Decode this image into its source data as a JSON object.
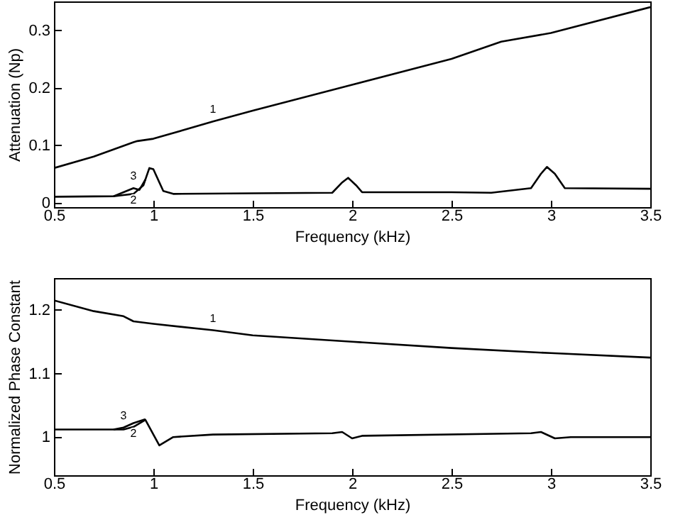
{
  "chart_data": [
    {
      "type": "line",
      "xlabel": "Frequency (kHz)",
      "ylabel": "Attenuation (Np)",
      "xlim": [
        0.5,
        3.5
      ],
      "xticks": [
        0.5,
        1,
        1.5,
        2,
        2.5,
        3,
        3.5
      ],
      "ylim": [
        -0.008,
        0.35
      ],
      "yticks": [
        0,
        0.1,
        0.2,
        0.3
      ],
      "series": [
        {
          "color": "#000000",
          "x": [
            0.5,
            0.7,
            0.9,
            0.92,
            1.0,
            1.3,
            1.5,
            2.0,
            2.5,
            2.75,
            3.0,
            3.5
          ],
          "values": [
            0.06,
            0.08,
            0.105,
            0.107,
            0.111,
            0.141,
            0.16,
            0.205,
            0.25,
            0.28,
            0.295,
            0.34
          ]
        },
        {
          "color": "#000000",
          "x": [
            0.5,
            0.8,
            0.85,
            0.9,
            0.95,
            0.98,
            1.0,
            1.05,
            1.1,
            1.5,
            1.9,
            1.95,
            1.98,
            2.02,
            2.05,
            2.5,
            2.7,
            2.9,
            2.95,
            2.98,
            3.02,
            3.07,
            3.5
          ],
          "values": [
            0.01,
            0.011,
            0.013,
            0.015,
            0.03,
            0.06,
            0.058,
            0.02,
            0.015,
            0.016,
            0.017,
            0.035,
            0.043,
            0.03,
            0.018,
            0.018,
            0.017,
            0.025,
            0.05,
            0.062,
            0.05,
            0.025,
            0.024
          ]
        },
        {
          "color": "#000000",
          "x": [
            0.8,
            0.85,
            0.9,
            0.93,
            0.96
          ],
          "values": [
            0.011,
            0.018,
            0.025,
            0.022,
            0.04
          ]
        }
      ],
      "annotations": [
        {
          "text": "1",
          "x": 1.3,
          "y": 0.141
        },
        {
          "text": "3",
          "x": 0.9,
          "y": 0.025
        },
        {
          "text": "2",
          "x": 0.9,
          "y": 0.015
        }
      ]
    },
    {
      "type": "line",
      "xlabel": "Frequency (kHz)",
      "ylabel": "Normalized Phase Constant",
      "xlim": [
        0.5,
        3.5
      ],
      "xticks": [
        0.5,
        1,
        1.5,
        2,
        2.5,
        3,
        3.5
      ],
      "ylim": [
        0.94,
        1.25
      ],
      "yticks": [
        1,
        1.1,
        1.2
      ],
      "series": [
        {
          "color": "#000000",
          "x": [
            0.5,
            0.7,
            0.85,
            0.9,
            1.0,
            1.3,
            1.5,
            2.0,
            2.5,
            3.0,
            3.5
          ],
          "values": [
            1.215,
            1.198,
            1.19,
            1.182,
            1.178,
            1.168,
            1.16,
            1.15,
            1.14,
            1.132,
            1.125
          ]
        },
        {
          "color": "#000000",
          "x": [
            0.5,
            0.85,
            0.9,
            0.96,
            1.03,
            1.1,
            1.3,
            1.9,
            1.95,
            2.0,
            2.05,
            2.9,
            2.95,
            3.02,
            3.1,
            3.5
          ],
          "values": [
            1.012,
            1.012,
            1.016,
            1.027,
            0.987,
            1.0,
            1.004,
            1.006,
            1.008,
            0.998,
            1.002,
            1.006,
            1.008,
            0.998,
            1.0,
            1.0
          ]
        },
        {
          "color": "#000000",
          "x": [
            0.8,
            0.85,
            0.9,
            0.96
          ],
          "values": [
            1.012,
            1.015,
            1.022,
            1.028
          ]
        }
      ],
      "annotations": [
        {
          "text": "1",
          "x": 1.3,
          "y": 1.168
        },
        {
          "text": "3",
          "x": 0.85,
          "y": 1.015
        },
        {
          "text": "2",
          "x": 0.9,
          "y": 1.016
        }
      ]
    }
  ]
}
